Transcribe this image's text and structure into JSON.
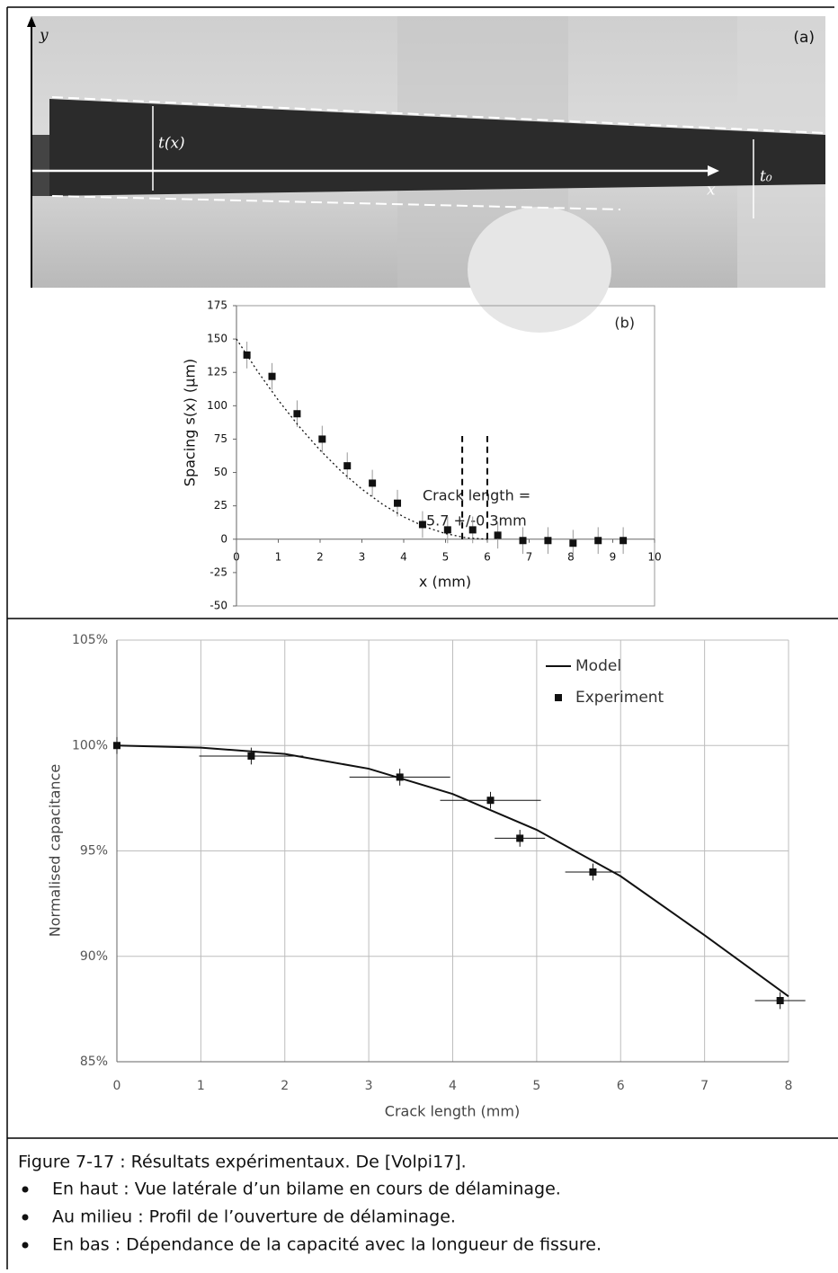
{
  "photo": {
    "label": "(a)",
    "annotations": [
      "y",
      "t(x)",
      "x",
      "t₀"
    ]
  },
  "chart_data": [
    {
      "type": "scatter",
      "panel_label": "(b)",
      "annotation": [
        "Crack length =",
        "5.7 +/-0.3mm"
      ],
      "y_label": "Spacing s(x) (µm)",
      "x_label": "x (mm)",
      "xlim": [
        0,
        10
      ],
      "xticks": [
        0,
        1,
        2,
        3,
        4,
        5,
        6,
        7,
        8,
        9,
        10
      ],
      "ylim": [
        -50,
        175
      ],
      "yticks": [
        -50,
        -25,
        0,
        25,
        50,
        75,
        100,
        125,
        150,
        175
      ],
      "xaxis_crosses": 0,
      "grid": false,
      "vlines": [
        5.4,
        6.0
      ],
      "series": [
        {
          "style": "markers",
          "color": "#111",
          "x": [
            0.25,
            0.85,
            1.45,
            2.05,
            2.65,
            3.25,
            3.85,
            4.45,
            5.05,
            5.65,
            6.25,
            6.85,
            7.45,
            8.05,
            8.65,
            9.25
          ],
          "values": [
            138,
            122,
            94,
            75,
            55,
            42,
            27,
            11,
            7,
            7,
            3,
            -1,
            -1,
            -3,
            -1,
            -1
          ],
          "yerr": [
            10,
            10,
            10,
            10,
            10,
            10,
            10,
            10,
            10,
            10,
            10,
            10,
            10,
            10,
            10,
            10
          ]
        },
        {
          "style": "dotted",
          "color": "#111",
          "x": [
            0,
            0.5,
            1,
            1.5,
            2,
            2.5,
            3,
            3.5,
            4,
            4.5,
            5,
            5.5,
            6
          ],
          "values": [
            150,
            126,
            104.2,
            84.4,
            66.7,
            51,
            37.5,
            26,
            16.7,
            9.4,
            4.2,
            1,
            0
          ]
        }
      ]
    },
    {
      "type": "scatter",
      "y_label": "Normalised capacitance",
      "x_label": "Crack length (mm)",
      "xlim": [
        0,
        8
      ],
      "xticks": [
        0,
        1,
        2,
        3,
        4,
        5,
        6,
        7,
        8
      ],
      "ylim": [
        85,
        105
      ],
      "yticks": [
        {
          "value": 85,
          "label": "85%"
        },
        {
          "value": 90,
          "label": "90%"
        },
        {
          "value": 95,
          "label": "95%"
        },
        {
          "value": 100,
          "label": "100%"
        },
        {
          "value": 105,
          "label": "105%"
        }
      ],
      "grid": true,
      "legend": "top-right",
      "series": [
        {
          "name": "Model",
          "style": "line",
          "color": "#111",
          "x": [
            0,
            1,
            2,
            3,
            4,
            5,
            6,
            7,
            8
          ],
          "values": [
            100,
            99.9,
            99.6,
            98.9,
            97.7,
            96.0,
            93.8,
            91.0,
            88.1
          ]
        },
        {
          "name": "Experiment",
          "style": "markers",
          "color": "#111",
          "x": [
            0,
            1.6,
            3.37,
            4.45,
            4.8,
            5.67,
            7.9
          ],
          "values": [
            100,
            99.5,
            98.5,
            97.4,
            95.6,
            94,
            87.9
          ],
          "xerr": [
            0,
            0.62,
            0.6,
            0.6,
            0.3,
            0.33,
            0.3
          ],
          "yerr": [
            0.4,
            0.4,
            0.4,
            0.4,
            0.4,
            0.4,
            0.4
          ]
        }
      ]
    }
  ],
  "caption": {
    "title": "Figure 7-17 : Résultats expérimentaux. De [Volpi17].",
    "items": [
      "En haut : Vue latérale d’un bilame en cours de délaminage.",
      "Au milieu : Profil de l’ouverture de délaminage.",
      "En bas : Dépendance de la capacité avec la longueur de fissure."
    ]
  }
}
